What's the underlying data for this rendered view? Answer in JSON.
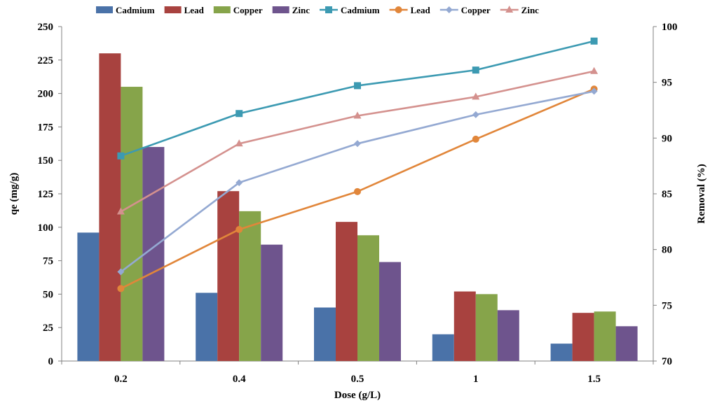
{
  "chart_data": {
    "type": "bar",
    "title": "",
    "xlabel": "Dose (g/L)",
    "ylabel": "qe (mg/g)",
    "y2label": "Removal (%)",
    "categories": [
      "0.2",
      "0.4",
      "0.5",
      "1",
      "1.5"
    ],
    "ylim": [
      0,
      250
    ],
    "yticks": [
      "0",
      "25",
      "50",
      "75",
      "100",
      "125",
      "150",
      "175",
      "200",
      "225",
      "250"
    ],
    "y2lim": [
      70,
      100
    ],
    "y2ticks": [
      "70",
      "75",
      "80",
      "85",
      "90",
      "95",
      "100"
    ],
    "legend_position": "top",
    "grid": false,
    "bar_series": [
      {
        "name": "Cadmium",
        "color": "#4A72A8",
        "values": [
          96,
          51,
          40,
          20,
          13
        ]
      },
      {
        "name": "Lead",
        "color": "#A8423F",
        "values": [
          230,
          127,
          104,
          52,
          36
        ]
      },
      {
        "name": "Copper",
        "color": "#86A44A",
        "values": [
          205,
          112,
          94,
          50,
          37
        ]
      },
      {
        "name": "Zinc",
        "color": "#6E548D",
        "values": [
          160,
          87,
          74,
          38,
          26
        ]
      }
    ],
    "line_series": [
      {
        "name": "Cadmium",
        "color": "#3C9AB2",
        "marker": "square",
        "values": [
          88.4,
          92.2,
          94.7,
          96.1,
          98.7
        ]
      },
      {
        "name": "Lead",
        "color": "#E1863A",
        "marker": "circle",
        "values": [
          76.5,
          81.8,
          85.2,
          89.9,
          94.4
        ]
      },
      {
        "name": "Copper",
        "color": "#94A9D2",
        "marker": "diamond",
        "values": [
          78.0,
          86.0,
          89.5,
          92.1,
          94.2
        ]
      },
      {
        "name": "Zinc",
        "color": "#D4918E",
        "marker": "triangle",
        "values": [
          83.4,
          89.5,
          92.0,
          93.7,
          96.0
        ]
      }
    ]
  }
}
